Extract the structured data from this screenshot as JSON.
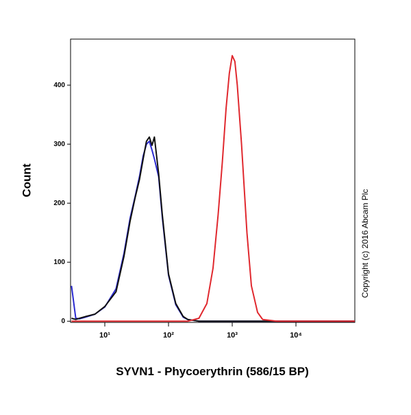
{
  "chart_data": {
    "type": "line",
    "x_label": "SYVN1 - Phycoerythrin (586/15 BP)",
    "y_label": "Count",
    "annotation": "Copyright (c) 2016 Abcam Plc",
    "x_log": true,
    "xlim": [
      2.9,
      84000
    ],
    "ylim": [
      -2,
      478
    ],
    "xticks": [
      {
        "value": 10,
        "label": "10¹"
      },
      {
        "value": 100,
        "label": "10²"
      },
      {
        "value": 1000,
        "label": "10³"
      },
      {
        "value": 10000,
        "label": "10⁴"
      }
    ],
    "yticks": [
      0,
      100,
      200,
      300,
      400
    ],
    "x": [
      3,
      3.5,
      4,
      5,
      7,
      10,
      15,
      20,
      25,
      30,
      35,
      40,
      45,
      50,
      55,
      60,
      70,
      80,
      100,
      130,
      170,
      200,
      300,
      400,
      500,
      600,
      700,
      800,
      900,
      1000,
      1100,
      1200,
      1400,
      1700,
      2000,
      2500,
      3000,
      5000,
      10000,
      30000,
      84000
    ],
    "series": [
      {
        "color": "#2a2ad0",
        "values": [
          60,
          5,
          4,
          7,
          12,
          24,
          55,
          115,
          175,
          212,
          245,
          280,
          300,
          305,
          290,
          275,
          245,
          175,
          78,
          28,
          7,
          3,
          0,
          0,
          0,
          0,
          0,
          0,
          0,
          0,
          0,
          0,
          0,
          0,
          0,
          0,
          0,
          0,
          0,
          0,
          0
        ]
      },
      {
        "color": "#111111",
        "values": [
          5,
          3,
          5,
          8,
          12,
          25,
          50,
          110,
          170,
          210,
          240,
          275,
          305,
          312,
          298,
          312,
          250,
          180,
          80,
          30,
          8,
          3,
          0,
          0,
          0,
          0,
          0,
          0,
          0,
          0,
          0,
          0,
          0,
          0,
          0,
          0,
          0,
          0,
          0,
          0,
          0
        ]
      },
      {
        "color": "#e0282e",
        "values": [
          0,
          0,
          0,
          0,
          0,
          0,
          0,
          0,
          0,
          0,
          0,
          0,
          0,
          0,
          0,
          0,
          0,
          0,
          0,
          0,
          0,
          0,
          5,
          30,
          90,
          180,
          270,
          360,
          420,
          450,
          440,
          400,
          300,
          150,
          60,
          15,
          3,
          0,
          0,
          0,
          0
        ]
      }
    ]
  }
}
